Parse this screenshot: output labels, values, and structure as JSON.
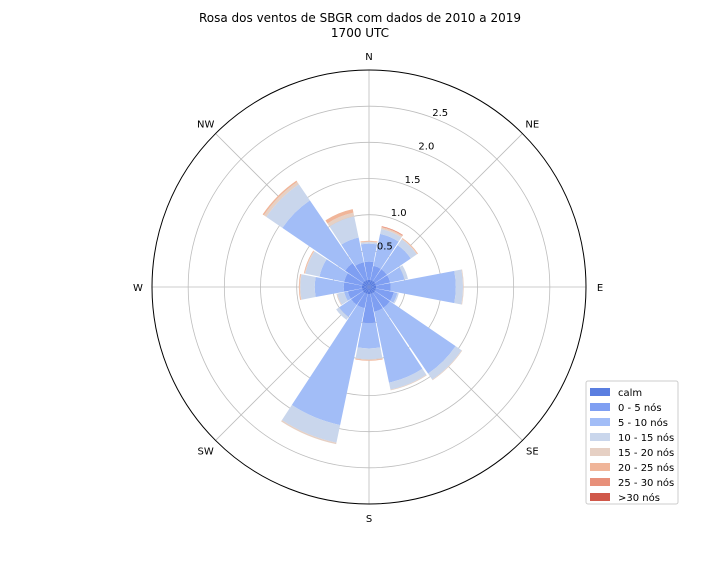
{
  "chart_data": {
    "type": "windrose",
    "title": "Rosa dos ventos de SBGR com dados de 2010 a 2019",
    "subtitle": "1700 UTC",
    "directions": [
      "N",
      "NNE",
      "NE",
      "ENE",
      "E",
      "ESE",
      "SE",
      "SSE",
      "S",
      "SSW",
      "SW",
      "WSW",
      "W",
      "WNW",
      "NW",
      "NNW"
    ],
    "direction_labels": [
      "N",
      "NE",
      "E",
      "SE",
      "S",
      "SW",
      "W",
      "NW"
    ],
    "radial_ticks": [
      0.5,
      1.0,
      1.5,
      2.0,
      2.5
    ],
    "radial_tick_labels": [
      "0.5",
      "1.0",
      "1.5",
      "2.0",
      "2.5"
    ],
    "rmax": 3.0,
    "grid": true,
    "legend_placement": "lower-right",
    "bins": [
      {
        "label": "calm",
        "color": "#5a7ee0"
      },
      {
        "label": "0 - 5 nós",
        "color": "#7f9ff2"
      },
      {
        "label": "5 - 10 nós",
        "color": "#a2bdf7"
      },
      {
        "label": "10 - 15 nós",
        "color": "#c9d6ec"
      },
      {
        "label": "15 - 20 nós",
        "color": "#e6d0c4"
      },
      {
        "label": "20 - 25 nós",
        "color": "#f0b599"
      },
      {
        "label": "25 - 30 nós",
        "color": "#e8907a"
      },
      {
        "label": ">30 nós",
        "color": "#d0584a"
      }
    ],
    "series": [
      {
        "direction": "N",
        "cumulative": [
          0.1,
          0.35,
          0.6,
          0.62,
          0.63,
          0.64,
          0.64,
          0.64
        ]
      },
      {
        "direction": "NNE",
        "cumulative": [
          0.1,
          0.3,
          0.75,
          0.82,
          0.84,
          0.85,
          0.86,
          0.86
        ]
      },
      {
        "direction": "NE",
        "cumulative": [
          0.1,
          0.3,
          0.7,
          0.8,
          0.81,
          0.82,
          0.82,
          0.82
        ]
      },
      {
        "direction": "ENE",
        "cumulative": [
          0.1,
          0.3,
          0.5,
          0.55,
          0.55,
          0.55,
          0.55,
          0.55
        ]
      },
      {
        "direction": "E",
        "cumulative": [
          0.1,
          0.3,
          1.2,
          1.3,
          1.31,
          1.31,
          1.31,
          1.31
        ]
      },
      {
        "direction": "ESE",
        "cumulative": [
          0.1,
          0.35,
          0.4,
          0.42,
          0.42,
          0.42,
          0.42,
          0.42
        ]
      },
      {
        "direction": "SE",
        "cumulative": [
          0.1,
          0.35,
          1.45,
          1.55,
          1.56,
          1.56,
          1.56,
          1.56
        ]
      },
      {
        "direction": "SSE",
        "cumulative": [
          0.1,
          0.35,
          1.35,
          1.45,
          1.46,
          1.46,
          1.46,
          1.46
        ]
      },
      {
        "direction": "S",
        "cumulative": [
          0.1,
          0.5,
          0.85,
          1.0,
          1.01,
          1.02,
          1.02,
          1.02
        ]
      },
      {
        "direction": "SSW",
        "cumulative": [
          0.1,
          0.3,
          1.95,
          2.2,
          2.22,
          2.22,
          2.22,
          2.22
        ]
      },
      {
        "direction": "SW",
        "cumulative": [
          0.1,
          0.3,
          0.5,
          0.55,
          0.55,
          0.55,
          0.55,
          0.55
        ]
      },
      {
        "direction": "WSW",
        "cumulative": [
          0.1,
          0.3,
          0.35,
          0.45,
          0.46,
          0.46,
          0.46,
          0.46
        ]
      },
      {
        "direction": "W",
        "cumulative": [
          0.1,
          0.35,
          0.75,
          0.95,
          0.96,
          0.97,
          0.97,
          0.97
        ]
      },
      {
        "direction": "WNW",
        "cumulative": [
          0.1,
          0.35,
          0.7,
          0.9,
          0.91,
          0.92,
          0.92,
          0.92
        ]
      },
      {
        "direction": "NW",
        "cumulative": [
          0.1,
          0.4,
          1.45,
          1.72,
          1.76,
          1.78,
          1.78,
          1.78
        ]
      },
      {
        "direction": "NNW",
        "cumulative": [
          0.1,
          0.35,
          0.7,
          1.0,
          1.05,
          1.1,
          1.1,
          1.1
        ]
      }
    ]
  }
}
